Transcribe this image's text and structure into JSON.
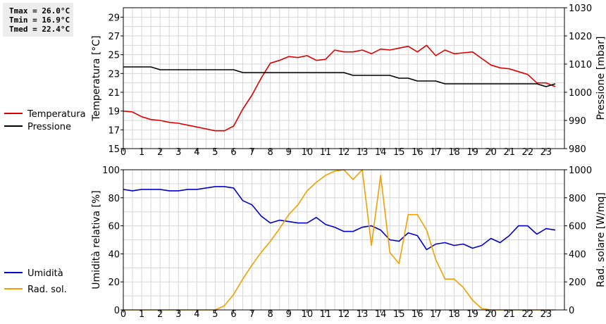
{
  "stats": {
    "tmax": "Tmax = 26.0°C",
    "tmin": "Tmin = 16.9°C",
    "tmed": "Tmed = 22.4°C"
  },
  "chart_data": [
    {
      "type": "line",
      "ylabel": "Temperatura [°C]",
      "y2label": "Pressione [mbar]",
      "ylim": [
        15,
        30
      ],
      "yticks": [
        15,
        17,
        19,
        21,
        23,
        25,
        27,
        29
      ],
      "y2lim": [
        980,
        1030
      ],
      "y2ticks": [
        980,
        990,
        1000,
        1010,
        1020,
        1030
      ],
      "xlim": [
        0,
        24
      ],
      "xticks": [
        0,
        1,
        2,
        3,
        4,
        5,
        6,
        7,
        8,
        9,
        10,
        11,
        12,
        13,
        14,
        15,
        16,
        17,
        18,
        19,
        20,
        21,
        22,
        23
      ],
      "grid": true,
      "legend_position": "left",
      "series": [
        {
          "name": "Temperatura",
          "axis": "left",
          "color": "#dd0000",
          "x": [
            0,
            0.5,
            1,
            1.5,
            2,
            2.5,
            3,
            3.5,
            4,
            4.5,
            5,
            5.5,
            6,
            6.5,
            7,
            7.5,
            8,
            8.5,
            9,
            9.5,
            10,
            10.5,
            11,
            11.5,
            12,
            12.5,
            13,
            13.5,
            14,
            14.5,
            15,
            15.5,
            16,
            16.5,
            17,
            17.5,
            18,
            18.5,
            19,
            19.5,
            20,
            20.5,
            21,
            21.5,
            22,
            22.5,
            23,
            23.5
          ],
          "y": [
            19.0,
            18.9,
            18.4,
            18.1,
            18.0,
            17.8,
            17.7,
            17.5,
            17.3,
            17.1,
            16.9,
            16.9,
            17.4,
            19.2,
            20.7,
            22.5,
            24.1,
            24.4,
            24.8,
            24.7,
            24.9,
            24.4,
            24.5,
            25.5,
            25.3,
            25.3,
            25.5,
            25.1,
            25.6,
            25.5,
            25.7,
            25.9,
            25.3,
            26.0,
            24.9,
            25.5,
            25.1,
            25.2,
            25.3,
            24.6,
            23.9,
            23.6,
            23.5,
            23.2,
            22.9,
            22.0,
            22.0,
            21.6
          ]
        },
        {
          "name": "Pressione",
          "axis": "right",
          "color": "#000000",
          "x": [
            0,
            0.5,
            1,
            1.5,
            2,
            2.5,
            3,
            3.5,
            4,
            4.5,
            5,
            5.5,
            6,
            6.5,
            7,
            7.5,
            8,
            8.5,
            9,
            9.5,
            10,
            10.5,
            11,
            11.5,
            12,
            12.5,
            13,
            13.5,
            14,
            14.5,
            15,
            15.5,
            16,
            16.5,
            17,
            17.5,
            18,
            18.5,
            19,
            19.5,
            20,
            20.5,
            21,
            21.5,
            22,
            22.5,
            23,
            23.5
          ],
          "y": [
            1009,
            1009,
            1009,
            1009,
            1008,
            1008,
            1008,
            1008,
            1008,
            1008,
            1008,
            1008,
            1008,
            1007,
            1007,
            1007,
            1007,
            1007,
            1007,
            1007,
            1007,
            1007,
            1007,
            1007,
            1007,
            1006,
            1006,
            1006,
            1006,
            1006,
            1005,
            1005,
            1004,
            1004,
            1004,
            1003,
            1003,
            1003,
            1003,
            1003,
            1003,
            1003,
            1003,
            1003,
            1003,
            1003,
            1002,
            1003
          ]
        }
      ]
    },
    {
      "type": "line",
      "ylabel": "Umidità relativa [%]",
      "y2label": "Rad. solare [W/mq]",
      "ylim": [
        0,
        100
      ],
      "yticks": [
        0,
        20,
        40,
        60,
        80,
        100
      ],
      "y2lim": [
        0,
        1000
      ],
      "y2ticks": [
        0,
        200,
        400,
        600,
        800,
        1000
      ],
      "xlim": [
        0,
        24
      ],
      "xticks": [
        0,
        1,
        2,
        3,
        4,
        5,
        6,
        7,
        8,
        9,
        10,
        11,
        12,
        13,
        14,
        15,
        16,
        17,
        18,
        19,
        20,
        21,
        22,
        23
      ],
      "grid": true,
      "legend_position": "left",
      "series": [
        {
          "name": "Umidità",
          "axis": "left",
          "color": "#0000cc",
          "x": [
            0,
            0.5,
            1,
            1.5,
            2,
            2.5,
            3,
            3.5,
            4,
            4.5,
            5,
            5.5,
            6,
            6.5,
            7,
            7.5,
            8,
            8.5,
            9,
            9.5,
            10,
            10.5,
            11,
            11.5,
            12,
            12.5,
            13,
            13.5,
            14,
            14.5,
            15,
            15.5,
            16,
            16.5,
            17,
            17.5,
            18,
            18.5,
            19,
            19.5,
            20,
            20.5,
            21,
            21.5,
            22,
            22.5,
            23,
            23.5
          ],
          "y": [
            86,
            85,
            86,
            86,
            86,
            85,
            85,
            86,
            86,
            87,
            88,
            88,
            87,
            78,
            75,
            67,
            62,
            64,
            63,
            62,
            62,
            66,
            61,
            59,
            56,
            56,
            59,
            60,
            57,
            50,
            49,
            55,
            53,
            43,
            47,
            48,
            46,
            47,
            44,
            46,
            51,
            48,
            53,
            60,
            60,
            54,
            58,
            57
          ]
        },
        {
          "name": "Rad. sol.",
          "axis": "right",
          "color": "#f0a000",
          "x": [
            0,
            0.5,
            1,
            1.5,
            2,
            2.5,
            3,
            3.5,
            4,
            4.5,
            5,
            5.5,
            6,
            6.5,
            7,
            7.5,
            8,
            8.5,
            9,
            9.5,
            10,
            10.5,
            11,
            11.5,
            12,
            12.5,
            13,
            13.5,
            14,
            14.5,
            15,
            15.5,
            16,
            16.5,
            17,
            17.5,
            18,
            18.5,
            19,
            19.5,
            20,
            20.5,
            21,
            21.5,
            22,
            22.5,
            23,
            23.5
          ],
          "y": [
            0,
            0,
            0,
            0,
            0,
            0,
            0,
            0,
            0,
            0,
            0,
            30,
            110,
            220,
            320,
            410,
            490,
            580,
            680,
            750,
            850,
            910,
            960,
            990,
            1000,
            930,
            1030,
            460,
            960,
            410,
            330,
            680,
            680,
            570,
            360,
            220,
            220,
            160,
            70,
            10,
            0,
            0,
            0,
            0,
            0,
            0,
            0,
            0
          ]
        }
      ]
    }
  ]
}
